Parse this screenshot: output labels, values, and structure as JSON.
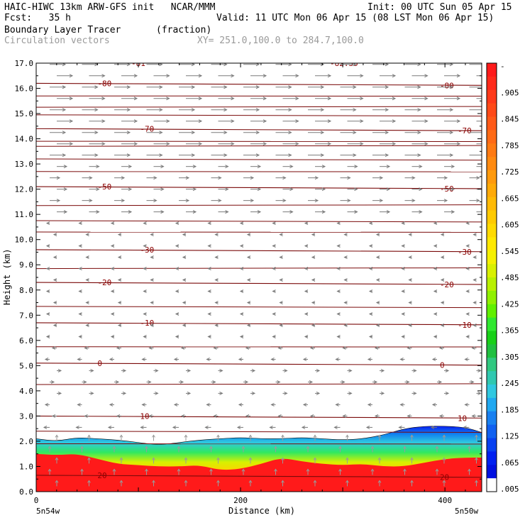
{
  "header": {
    "line1_left": "HAIC-HIWC 13km ARW-GFS init   NCAR/MMM",
    "line1_right": "Init: 00 UTC Sun 05 Apr 15",
    "line2_left": "Fcst:   35 h",
    "line2_right": "Valid: 11 UTC Mon 06 Apr 15 (08 LST Mon 06 Apr 15)",
    "field_name": "Boundary Layer Tracer",
    "field_units": "(fraction)",
    "vectors_label": "Circulation vectors",
    "xy_label": "XY= 251.0,100.0 to 284.7,100.0"
  },
  "chart_data": {
    "type": "heatmap",
    "xlabel": "Distance (km)",
    "ylabel": "Height (km)",
    "xlim": [
      0,
      436
    ],
    "ylim": [
      0,
      17
    ],
    "x_ticks": [
      0,
      200,
      400
    ],
    "y_ticks": [
      "0.0",
      "1.0",
      "2.0",
      "3.0",
      "4.0",
      "5.0",
      "6.0",
      "7.0",
      "8.0",
      "9.0",
      "10.0",
      "11.0",
      "12.0",
      "13.0",
      "14.0",
      "15.0",
      "16.0",
      "17.0"
    ],
    "x_endpoint_labels": [
      "5n54w",
      "5n50w"
    ],
    "colorbar_labels": [
      "-",
      ".905",
      ".845",
      ".785",
      ".725",
      ".665",
      ".605",
      ".545",
      ".485",
      ".425",
      ".365",
      ".305",
      ".245",
      ".185",
      ".125",
      ".065",
      ".005"
    ],
    "colorbar_colors": [
      "#ff1a1a",
      "#ff2a1a",
      "#ff3a1a",
      "#ff4a18",
      "#ff5a18",
      "#ff6a15",
      "#ff7a12",
      "#ff8a10",
      "#ff9a0d",
      "#ffaa08",
      "#ffba05",
      "#ffca00",
      "#ffda00",
      "#ffe800",
      "#f5f000",
      "#d8f000",
      "#b8f000",
      "#90f000",
      "#60f000",
      "#30e830",
      "#18d018",
      "#20c040",
      "#30c880",
      "#30c8b0",
      "#30c8e0",
      "#20a8f0",
      "#1880f0",
      "#1060f0",
      "#0840f0",
      "#0020f0",
      "#0010e0",
      "#ffffff"
    ],
    "temperature_contours": [
      {
        "label": "-80",
        "height": 16.2
      },
      {
        "label": "-70",
        "height": 14.4
      },
      {
        "label": "-50",
        "height": 12.1
      },
      {
        "label": "-30",
        "height": 9.6
      },
      {
        "label": "-20",
        "height": 8.3
      },
      {
        "label": "-10",
        "height": 6.7
      },
      {
        "label": "0",
        "height": 5.1
      },
      {
        "label": "10",
        "height": 3.0
      },
      {
        "label": "20",
        "height": 0.65
      }
    ],
    "top_contour_labels": [
      "-81",
      "-82.35"
    ],
    "pbl_top_km": [
      [
        0,
        2.1
      ],
      [
        20,
        2.0
      ],
      [
        40,
        2.15
      ],
      [
        60,
        2.1
      ],
      [
        80,
        2.05
      ],
      [
        100,
        1.95
      ],
      [
        120,
        1.85
      ],
      [
        140,
        1.95
      ],
      [
        160,
        2.05
      ],
      [
        180,
        2.1
      ],
      [
        200,
        2.15
      ],
      [
        220,
        2.1
      ],
      [
        240,
        2.1
      ],
      [
        260,
        2.15
      ],
      [
        280,
        2.1
      ],
      [
        300,
        2.05
      ],
      [
        320,
        2.1
      ],
      [
        340,
        2.25
      ],
      [
        360,
        2.5
      ],
      [
        380,
        2.6
      ],
      [
        400,
        2.6
      ],
      [
        420,
        2.55
      ],
      [
        436,
        2.35
      ]
    ],
    "red_layer_top_km": [
      [
        0,
        1.5
      ],
      [
        20,
        1.45
      ],
      [
        40,
        1.5
      ],
      [
        60,
        1.3
      ],
      [
        80,
        1.1
      ],
      [
        100,
        1.05
      ],
      [
        120,
        1.0
      ],
      [
        140,
        1.0
      ],
      [
        160,
        1.05
      ],
      [
        180,
        0.85
      ],
      [
        200,
        0.9
      ],
      [
        220,
        1.1
      ],
      [
        240,
        1.35
      ],
      [
        260,
        1.2
      ],
      [
        280,
        1.1
      ],
      [
        300,
        1.05
      ],
      [
        320,
        1.1
      ],
      [
        340,
        1.0
      ],
      [
        360,
        1.0
      ],
      [
        380,
        1.15
      ],
      [
        400,
        1.3
      ],
      [
        420,
        1.35
      ],
      [
        436,
        1.35
      ]
    ]
  }
}
